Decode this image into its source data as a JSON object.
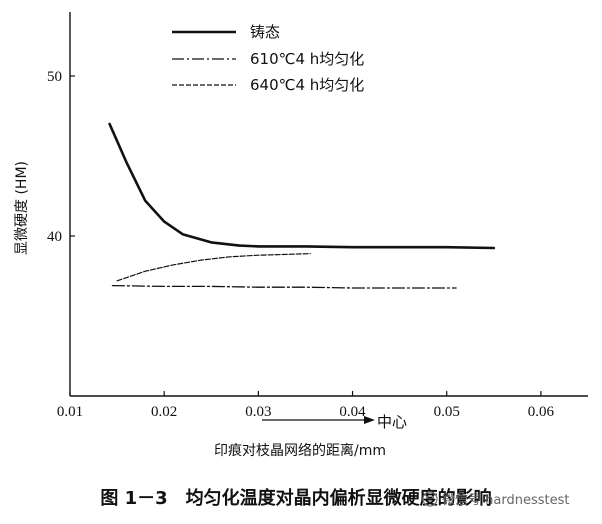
{
  "chart_data": {
    "type": "line",
    "title": "",
    "caption": "图 1－3　均匀化温度对晶内偏析显微硬度的影响",
    "xlabel": "印痕对枝晶网络的距离/mm",
    "ylabel": "显微硬度 (HM)",
    "center_label": "中心",
    "xlim": [
      0.01,
      0.065
    ],
    "ylim": [
      30,
      54
    ],
    "x_ticks": [
      "0.01",
      "0.02",
      "0.03",
      "0.04",
      "0.05",
      "0.06"
    ],
    "y_ticks": [
      "40",
      "50"
    ],
    "legend_position": "top-center",
    "series": [
      {
        "name": "铸态",
        "style": "solid",
        "x": [
          0.0142,
          0.016,
          0.018,
          0.02,
          0.022,
          0.025,
          0.028,
          0.03,
          0.035,
          0.04,
          0.045,
          0.05,
          0.055
        ],
        "y": [
          47.0,
          44.6,
          42.2,
          40.9,
          40.1,
          39.6,
          39.4,
          39.35,
          39.35,
          39.3,
          39.3,
          39.3,
          39.25
        ]
      },
      {
        "name": "610℃4 h均匀化",
        "style": "dashdot",
        "x": [
          0.0145,
          0.02,
          0.025,
          0.03,
          0.035,
          0.04,
          0.045,
          0.051
        ],
        "y": [
          36.9,
          36.85,
          36.85,
          36.8,
          36.8,
          36.75,
          36.75,
          36.75
        ]
      },
      {
        "name": "640℃4 h均匀化",
        "style": "dashed",
        "x": [
          0.015,
          0.018,
          0.021,
          0.024,
          0.027,
          0.03,
          0.033,
          0.0355
        ],
        "y": [
          37.2,
          37.8,
          38.2,
          38.5,
          38.7,
          38.8,
          38.85,
          38.9
        ]
      }
    ]
  },
  "watermark": "微信号 hardnesstest"
}
